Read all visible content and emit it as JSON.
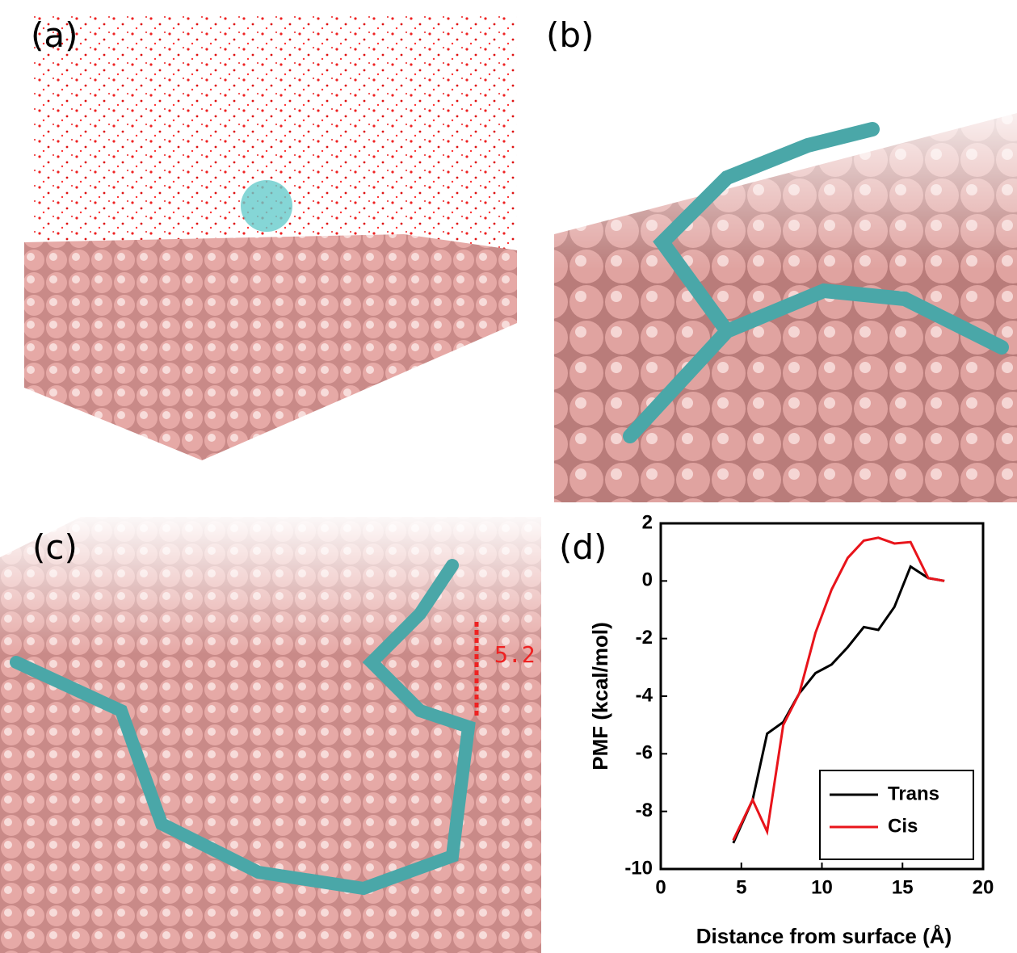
{
  "panels": [
    {
      "label": "(a)"
    },
    {
      "label": "(b)"
    },
    {
      "label": "(c)",
      "annotation": "5.2"
    }
  ],
  "chart_data": {
    "type": "line",
    "panel_label": "(d)",
    "x_label": "Distance from surface (Å)",
    "y_label": "PMF (kcal/mol)",
    "x": [
      4.5,
      5.7,
      6.6,
      7.6,
      8.6,
      9.6,
      10.6,
      11.6,
      12.6,
      13.5,
      14.5,
      15.5,
      16.6,
      17.6
    ],
    "series": [
      {
        "name": "Trans",
        "color": "#000000",
        "values": [
          -9.1,
          -7.6,
          -5.3,
          -4.9,
          -3.9,
          -3.2,
          -2.9,
          -2.3,
          -1.6,
          -1.7,
          -0.9,
          0.5,
          0.1,
          0.0
        ]
      },
      {
        "name": "Cis",
        "color": "#e8141b",
        "values": [
          -9.0,
          -7.6,
          -8.7,
          -5.0,
          -3.9,
          -1.8,
          -0.3,
          0.8,
          1.4,
          1.5,
          1.3,
          1.35,
          0.1,
          0.0
        ]
      }
    ],
    "xlim": [
      0,
      20
    ],
    "xticks": [
      0,
      5,
      10,
      15,
      20
    ],
    "ylim": [
      -10,
      2
    ],
    "yticks": [
      -10,
      -8,
      -6,
      -4,
      -2,
      0,
      2
    ],
    "legend": "lower right"
  }
}
